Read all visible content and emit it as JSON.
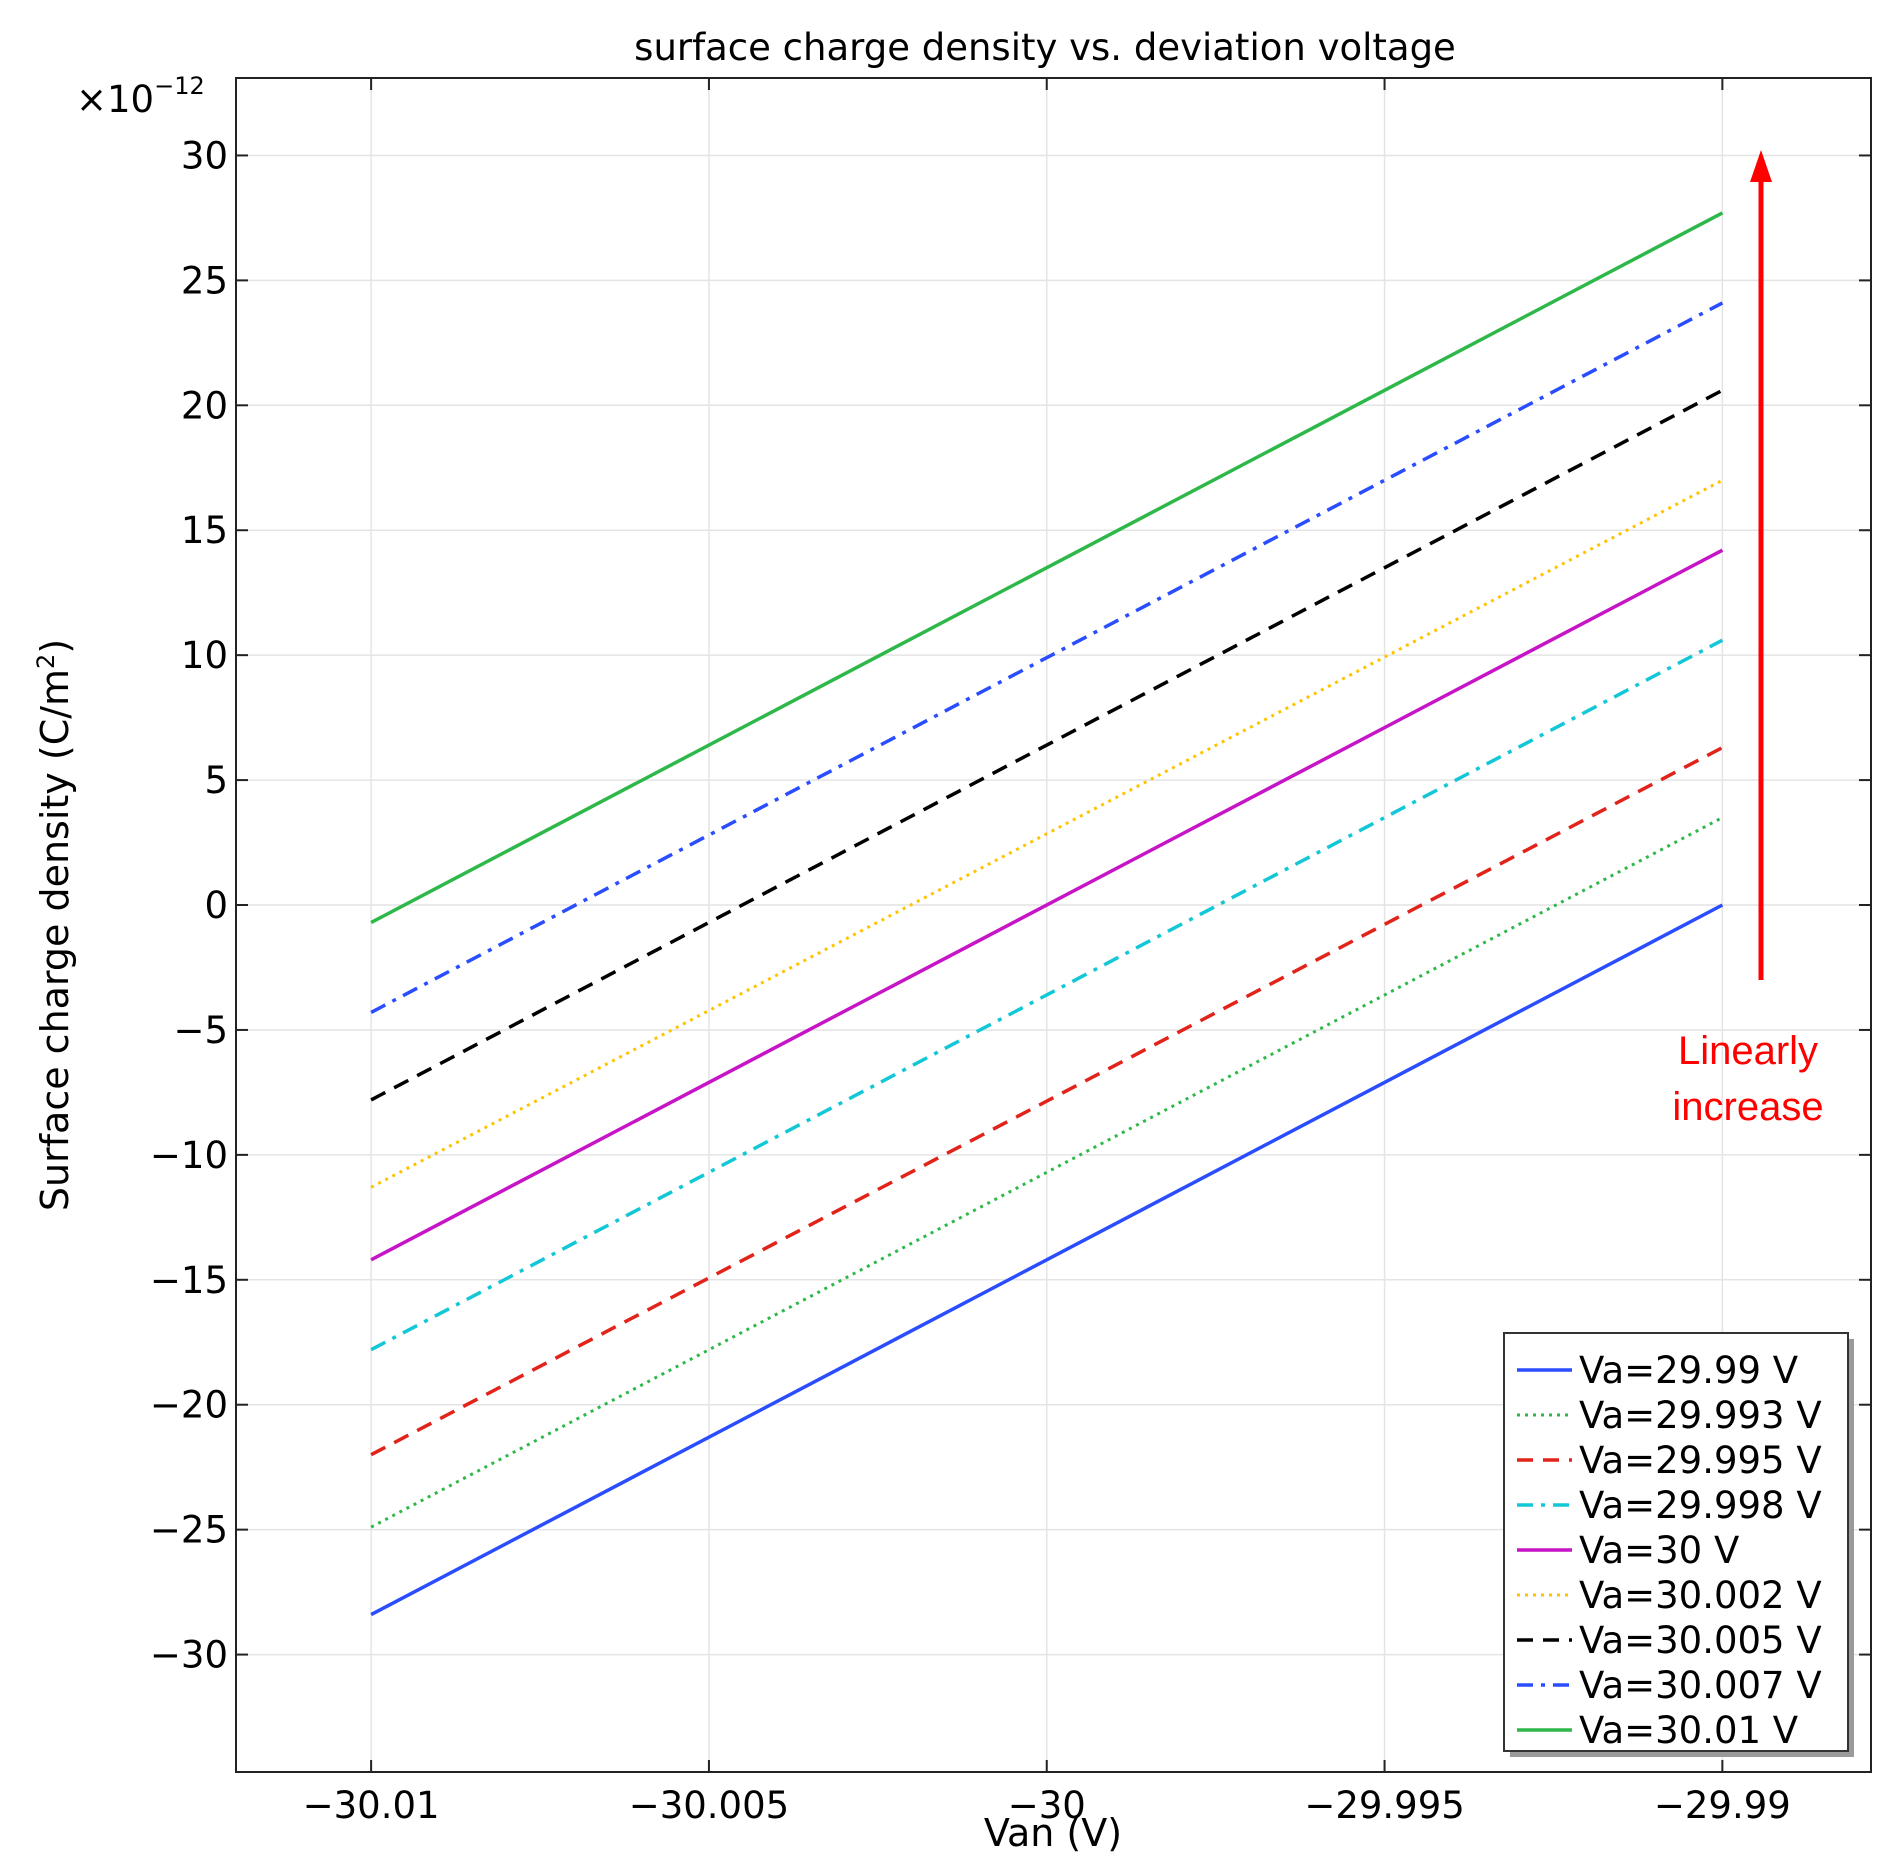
{
  "chart_data": {
    "type": "line",
    "title": "surface charge density vs. deviation voltage",
    "xlabel": "Van (V)",
    "ylabel_main": "Surface charge density (C/m",
    "ylabel_sup": "2",
    "ylabel_end": ")",
    "y_multiplier": "×10",
    "y_multiplier_exp": "−12",
    "xlim": [
      -30.012,
      -29.9878
    ],
    "ylim": [
      -34.7,
      33.1
    ],
    "x_ticks": [
      -30.01,
      -30.005,
      -30,
      -29.995,
      -29.99
    ],
    "x_tick_labels": [
      "−30.01",
      "−30.005",
      "−30",
      "−29.995",
      "−29.99"
    ],
    "y_ticks": [
      30,
      25,
      20,
      15,
      10,
      5,
      0,
      -5,
      -10,
      -15,
      -20,
      -25,
      -30
    ],
    "y_tick_labels": [
      "30",
      "25",
      "20",
      "15",
      "10",
      "5",
      "0",
      "−5",
      "−10",
      "−15",
      "−20",
      "−25",
      "−30"
    ],
    "grid": true,
    "legend_position": "bottom-right",
    "x": [
      -30.01,
      -29.99
    ],
    "series": [
      {
        "name": "Va=29.99 V",
        "values": [
          -28.4,
          0.0
        ],
        "color": "#2a4dff",
        "dash": "solid"
      },
      {
        "name": "Va=29.993 V",
        "values": [
          -24.9,
          3.5
        ],
        "color": "#2fb84a",
        "dash": "dotted"
      },
      {
        "name": "Va=29.995 V",
        "values": [
          -22.0,
          6.3
        ],
        "color": "#e2231a",
        "dash": "dashed"
      },
      {
        "name": "Va=29.998 V",
        "values": [
          -17.8,
          10.6
        ],
        "color": "#13c7d6",
        "dash": "dashdot"
      },
      {
        "name": "Va=30 V",
        "values": [
          -14.2,
          14.2
        ],
        "color": "#c614c6",
        "dash": "solid"
      },
      {
        "name": "Va=30.002 V",
        "values": [
          -11.3,
          17.0
        ],
        "color": "#ffc400",
        "dash": "dotted"
      },
      {
        "name": "Va=30.005 V",
        "values": [
          -7.8,
          20.6
        ],
        "color": "#000000",
        "dash": "dashed"
      },
      {
        "name": "Va=30.007 V",
        "values": [
          -4.3,
          24.1
        ],
        "color": "#2a4dff",
        "dash": "dashdot"
      },
      {
        "name": "Va=30.01 V",
        "values": [
          -0.7,
          27.7
        ],
        "color": "#2fb84a",
        "dash": "solid"
      }
    ],
    "annotation": {
      "lines": [
        "Linearly",
        "increase"
      ],
      "color": "#ff0000"
    }
  }
}
